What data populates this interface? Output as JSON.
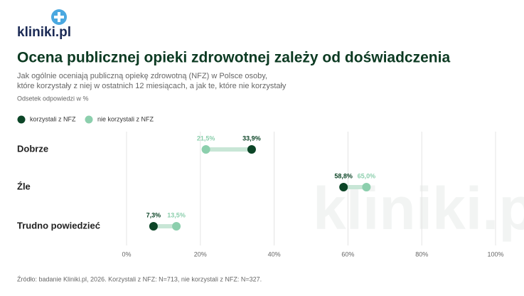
{
  "logo": "kliniki.pl",
  "watermark": "kliniki.pl",
  "chart_data": {
    "type": "dumbbell",
    "title": "Ocena publicznej opieki zdrowotnej zależy od doświadczenia",
    "subtitle": [
      "Jak ogólnie oceniają publiczną opiekę zdrowotną (NFZ) w Polsce osoby,",
      "które korzystały z niej w ostatnich 12 miesiącach, a jak te, które nie korzystały"
    ],
    "note": "Odsetek odpowiedzi w %",
    "source": "Źródło: badanie Kliniki.pl, 2026. Korzystali z NFZ: N=713, nie korzystali z NFZ: N=327.",
    "categories": [
      "Dobrze",
      "Źle",
      "Trudno powiedzieć"
    ],
    "series": [
      {
        "name": "korzystali z NFZ",
        "color": "#0c4527",
        "values": [
          33.9,
          58.8,
          7.3
        ],
        "value_labels": [
          "33,9%",
          "58,8%",
          "7,3%"
        ]
      },
      {
        "name": "nie korzystali z NFZ",
        "color": "#8ccfad",
        "values": [
          21.5,
          65.0,
          13.5
        ],
        "value_labels": [
          "21,5%",
          "65,0%",
          "13,5%"
        ]
      }
    ],
    "xlim": [
      0,
      100
    ],
    "xticks": [
      {
        "value": 0,
        "label": "0%"
      },
      {
        "value": 20,
        "label": "20%"
      },
      {
        "value": 40,
        "label": "40%"
      },
      {
        "value": 60,
        "label": "60%"
      },
      {
        "value": 80,
        "label": "80%"
      },
      {
        "value": 100,
        "label": "100%"
      }
    ],
    "grid": true,
    "legend": "top-left"
  }
}
